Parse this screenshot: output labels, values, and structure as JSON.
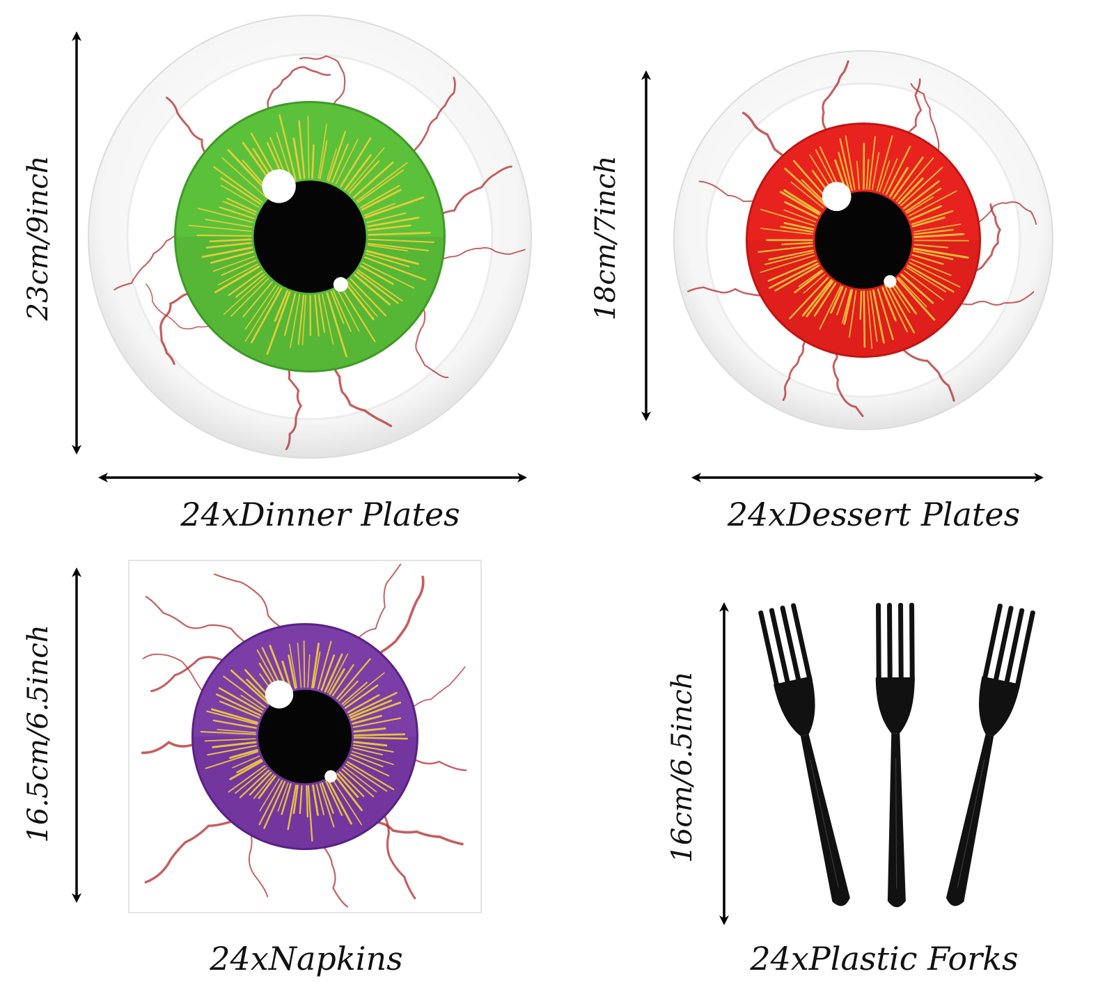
{
  "items": {
    "dinner": {
      "caption": "24xDinner Plates",
      "size": "23cm/9inch",
      "iris_color": "#5cc13a",
      "iris_dark": "#3f9a28"
    },
    "dessert": {
      "caption": "24xDessert Plates",
      "size": "18cm/7inch",
      "iris_color": "#e8231f",
      "iris_dark": "#c21512"
    },
    "napkins": {
      "caption": "24xNapkins",
      "size": "16.5cm/6.5inch",
      "iris_color": "#7a3ea6",
      "iris_dark": "#5a2186"
    },
    "forks": {
      "caption": "24xPlastic Forks",
      "size": "16cm/6.5inch",
      "fork_color": "#111111"
    }
  },
  "colors": {
    "vein": "#b3282a",
    "ray": "#f2cf3a",
    "pupil": "#050505",
    "plate_rim": "#e9e9e9"
  }
}
